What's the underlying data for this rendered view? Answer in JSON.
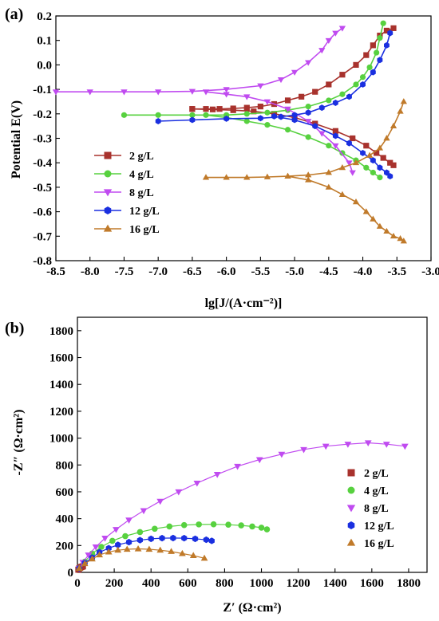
{
  "colors": {
    "2 g/L": "#a8322d",
    "4 g/L": "#57d13f",
    "8 g/L": "#c04bf0",
    "12 g/L": "#1a2fe0",
    "16 g/L": "#c07a2a"
  },
  "chart_data": [
    {
      "panel_label": "(a)",
      "type": "line",
      "xlabel": "lg[J/(A·cm⁻²)]",
      "ylabel": "Potential E(V)",
      "xlim": [
        -8.5,
        -3.0
      ],
      "ylim": [
        -0.8,
        0.2
      ],
      "xticks": [
        -8.5,
        -8.0,
        -7.5,
        -7.0,
        -6.5,
        -6.0,
        -5.5,
        -5.0,
        -4.5,
        -4.0,
        -3.5,
        -3.0
      ],
      "xtick_labels": [
        "-8.5",
        "-8.0",
        "-7.5",
        "-7.0",
        "-6.5",
        "-6.0",
        "-5.5",
        "-5.0",
        "-4.5",
        "-4.0",
        "-3.5",
        "-3.0"
      ],
      "yticks": [
        -0.8,
        -0.7,
        -0.6,
        -0.5,
        -0.4,
        -0.3,
        -0.2,
        -0.1,
        0.0,
        0.1,
        0.2
      ],
      "ytick_labels": [
        "-0.8",
        "-0.7",
        "-0.6",
        "-0.5",
        "-0.4",
        "-0.3",
        "-0.2",
        "-0.1",
        "0.0",
        "0.1",
        "0.2"
      ],
      "grid": false,
      "legend_position": "lower-left",
      "legend": [
        "2 g/L",
        "4 g/L",
        "8 g/L",
        "12 g/L",
        "16 g/L"
      ],
      "series": [
        {
          "name": "2 g/L",
          "marker": "square",
          "x": [
            -6.5,
            -6.3,
            -6.1,
            -5.9,
            -5.7,
            -5.5,
            -5.3,
            -5.1,
            -4.9,
            -4.7,
            -4.5,
            -4.3,
            -4.1,
            -3.95,
            -3.85,
            -3.75,
            -3.65,
            -3.55
          ],
          "y": [
            -0.18,
            -0.18,
            -0.18,
            -0.178,
            -0.175,
            -0.17,
            -0.16,
            -0.145,
            -0.13,
            -0.11,
            -0.08,
            -0.04,
            0.0,
            0.04,
            0.08,
            0.12,
            0.14,
            0.15
          ],
          "x2": [
            -6.5,
            -6.2,
            -5.9,
            -5.6,
            -5.3,
            -5.0,
            -4.7,
            -4.4,
            -4.15,
            -3.95,
            -3.8,
            -3.7,
            -3.6,
            -3.55
          ],
          "y2": [
            -0.18,
            -0.182,
            -0.185,
            -0.19,
            -0.2,
            -0.215,
            -0.24,
            -0.27,
            -0.3,
            -0.33,
            -0.36,
            -0.38,
            -0.4,
            -0.41
          ]
        },
        {
          "name": "4 g/L",
          "marker": "circle",
          "x": [
            -7.5,
            -7.0,
            -6.5,
            -6.0,
            -5.7,
            -5.4,
            -5.1,
            -4.8,
            -4.5,
            -4.3,
            -4.1,
            -4.0,
            -3.9,
            -3.8,
            -3.75,
            -3.7
          ],
          "y": [
            -0.205,
            -0.205,
            -0.205,
            -0.205,
            -0.2,
            -0.195,
            -0.185,
            -0.17,
            -0.145,
            -0.12,
            -0.08,
            -0.05,
            -0.01,
            0.05,
            0.11,
            0.17
          ],
          "x2": [
            -6.3,
            -6.0,
            -5.7,
            -5.4,
            -5.1,
            -4.8,
            -4.5,
            -4.3,
            -4.1,
            -3.95,
            -3.85,
            -3.75
          ],
          "y2": [
            -0.205,
            -0.215,
            -0.23,
            -0.245,
            -0.265,
            -0.295,
            -0.33,
            -0.36,
            -0.39,
            -0.42,
            -0.44,
            -0.46
          ]
        },
        {
          "name": "8 g/L",
          "marker": "triangle-down",
          "x": [
            -8.5,
            -8.0,
            -7.5,
            -7.0,
            -6.5,
            -6.0,
            -5.5,
            -5.2,
            -5.0,
            -4.8,
            -4.6,
            -4.5,
            -4.4,
            -4.3
          ],
          "y": [
            -0.11,
            -0.11,
            -0.11,
            -0.11,
            -0.108,
            -0.1,
            -0.085,
            -0.06,
            -0.03,
            0.01,
            0.06,
            0.1,
            0.13,
            0.15
          ],
          "x2": [
            -6.3,
            -6.0,
            -5.7,
            -5.4,
            -5.1,
            -4.8,
            -4.6,
            -4.4,
            -4.2,
            -4.15
          ],
          "y2": [
            -0.11,
            -0.12,
            -0.13,
            -0.15,
            -0.18,
            -0.23,
            -0.28,
            -0.33,
            -0.4,
            -0.44
          ]
        },
        {
          "name": "12 g/L",
          "marker": "hexagon",
          "x": [
            -7.0,
            -6.5,
            -6.0,
            -5.5,
            -5.2,
            -5.0,
            -4.8,
            -4.6,
            -4.4,
            -4.2,
            -4.0,
            -3.85,
            -3.75,
            -3.65,
            -3.6
          ],
          "y": [
            -0.23,
            -0.225,
            -0.22,
            -0.218,
            -0.212,
            -0.205,
            -0.195,
            -0.175,
            -0.155,
            -0.13,
            -0.08,
            -0.03,
            0.02,
            0.08,
            0.13
          ],
          "x2": [
            -5.3,
            -5.0,
            -4.7,
            -4.4,
            -4.2,
            -4.0,
            -3.85,
            -3.75,
            -3.65,
            -3.6
          ],
          "y2": [
            -0.21,
            -0.225,
            -0.25,
            -0.29,
            -0.32,
            -0.36,
            -0.39,
            -0.42,
            -0.44,
            -0.455
          ]
        },
        {
          "name": "16 g/L",
          "marker": "triangle-up",
          "x": [
            -6.3,
            -6.0,
            -5.7,
            -5.4,
            -5.1,
            -4.8,
            -4.5,
            -4.3,
            -4.1,
            -3.9,
            -3.75,
            -3.65,
            -3.55,
            -3.45,
            -3.4
          ],
          "y": [
            -0.46,
            -0.46,
            -0.46,
            -0.458,
            -0.455,
            -0.45,
            -0.44,
            -0.42,
            -0.4,
            -0.37,
            -0.34,
            -0.3,
            -0.25,
            -0.19,
            -0.15
          ],
          "x2": [
            -5.1,
            -4.8,
            -4.5,
            -4.3,
            -4.1,
            -3.95,
            -3.85,
            -3.75,
            -3.65,
            -3.55,
            -3.45,
            -3.4
          ],
          "y2": [
            -0.455,
            -0.47,
            -0.5,
            -0.53,
            -0.56,
            -0.6,
            -0.63,
            -0.66,
            -0.68,
            -0.7,
            -0.71,
            -0.72
          ]
        }
      ]
    },
    {
      "panel_label": "(b)",
      "type": "scatter",
      "xlabel": "Z′ (Ω·cm²)",
      "ylabel": "-Z″ (Ω·cm²)",
      "xlim": [
        0,
        1900
      ],
      "ylim": [
        0,
        1900
      ],
      "xticks": [
        0,
        200,
        400,
        600,
        800,
        1000,
        1200,
        1400,
        1600,
        1800
      ],
      "xtick_labels": [
        "0",
        "200",
        "400",
        "600",
        "800",
        "1000",
        "1200",
        "1400",
        "1600",
        "1800"
      ],
      "yticks": [
        0,
        200,
        400,
        600,
        800,
        1000,
        1200,
        1400,
        1600,
        1800
      ],
      "ytick_labels": [
        "0",
        "200",
        "400",
        "600",
        "800",
        "1000",
        "1200",
        "1400",
        "1600",
        "1800"
      ],
      "grid": false,
      "legend_position": "lower-right",
      "legend": [
        "2 g/L",
        "4 g/L",
        "8 g/L",
        "12 g/L",
        "16 g/L"
      ],
      "series": [
        {
          "name": "2 g/L",
          "marker": "square",
          "x": [
            5,
            10,
            15,
            20,
            25,
            30
          ],
          "y": [
            20,
            30,
            35,
            40,
            42,
            45
          ]
        },
        {
          "name": "4 g/L",
          "marker": "circle",
          "x": [
            10,
            40,
            80,
            130,
            190,
            260,
            340,
            420,
            500,
            580,
            660,
            740,
            820,
            890,
            950,
            1000,
            1030
          ],
          "y": [
            30,
            80,
            140,
            190,
            235,
            270,
            300,
            325,
            342,
            352,
            357,
            358,
            355,
            350,
            342,
            333,
            320
          ]
        },
        {
          "name": "8 g/L",
          "marker": "triangle-down",
          "x": [
            10,
            30,
            60,
            100,
            150,
            210,
            280,
            360,
            450,
            550,
            650,
            760,
            870,
            990,
            1110,
            1230,
            1350,
            1470,
            1580,
            1680,
            1780
          ],
          "y": [
            30,
            75,
            130,
            190,
            255,
            320,
            390,
            460,
            530,
            600,
            665,
            730,
            790,
            840,
            880,
            915,
            940,
            955,
            965,
            955,
            940
          ]
        },
        {
          "name": "12 g/L",
          "marker": "hexagon",
          "x": [
            10,
            40,
            80,
            120,
            170,
            220,
            280,
            340,
            400,
            460,
            520,
            580,
            640,
            700,
            730
          ],
          "y": [
            30,
            70,
            110,
            150,
            180,
            205,
            225,
            240,
            250,
            255,
            256,
            255,
            250,
            243,
            235
          ]
        },
        {
          "name": "16 g/L",
          "marker": "triangle-up",
          "x": [
            10,
            40,
            80,
            120,
            170,
            220,
            270,
            330,
            390,
            450,
            510,
            570,
            630,
            690
          ],
          "y": [
            30,
            65,
            100,
            130,
            152,
            165,
            172,
            175,
            172,
            165,
            155,
            140,
            125,
            105
          ]
        }
      ]
    }
  ]
}
